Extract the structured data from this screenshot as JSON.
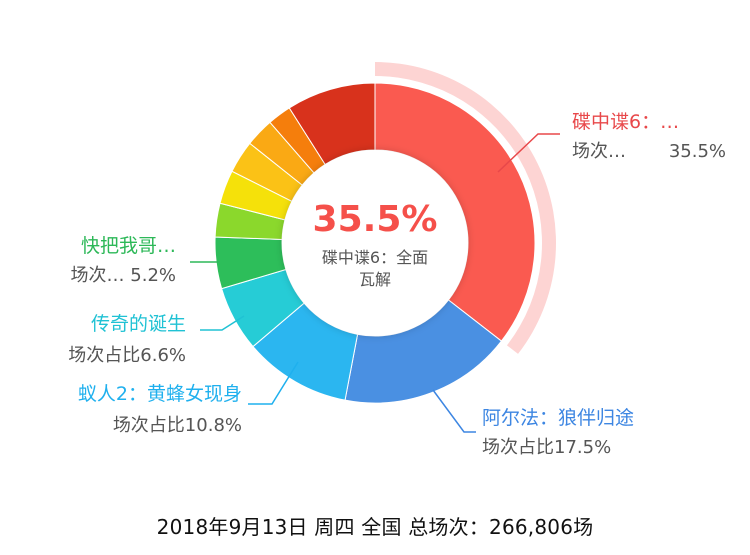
{
  "chart_data": {
    "type": "pie",
    "variant": "donut",
    "center_label": {
      "value": "35.5%",
      "name_line1": "碟中谍6：全面",
      "name_line2": "瓦解"
    },
    "slices": [
      {
        "name": "碟中谍6：全面瓦解",
        "value": 35.5,
        "color": "#FA5A50",
        "highlighted": true
      },
      {
        "name": "阿尔法：狼伴归途",
        "value": 17.5,
        "color": "#4A90E2"
      },
      {
        "name": "蚁人2：黄蜂女现身",
        "value": 10.8,
        "color": "#2BB6F0"
      },
      {
        "name": "传奇的诞生",
        "value": 6.6,
        "color": "#26CCD6"
      },
      {
        "name": "快把我哥带走",
        "value": 5.2,
        "color": "#2DBE5A"
      },
      {
        "name": "",
        "value": 3.4,
        "color": "#8BD82C"
      },
      {
        "name": "",
        "value": 3.4,
        "color": "#F5E10A"
      },
      {
        "name": "",
        "value": 3.3,
        "color": "#FBC216"
      },
      {
        "name": "",
        "value": 2.9,
        "color": "#FAA914"
      },
      {
        "name": "",
        "value": 2.4,
        "color": "#F57E0C"
      },
      {
        "name": "",
        "value": 9.0,
        "color": "#D8321C"
      }
    ],
    "callouts": [
      {
        "title": "碟中谍6：…",
        "sub": "场次…",
        "pct": "35.5%",
        "color": "#E8484A"
      },
      {
        "title": "阿尔法：狼伴归途",
        "sub": "场次占比17.5%",
        "color": "#3D86E2"
      },
      {
        "title": "蚁人2：黄蜂女现身",
        "sub": "场次占比10.8%",
        "color": "#1FB0EE"
      },
      {
        "title": "传奇的诞生",
        "sub": "场次占比6.6%",
        "color": "#20C2D4"
      },
      {
        "title": "快把我哥…",
        "sub": "场次…  5.2%",
        "color": "#2DB858"
      }
    ],
    "footer": "2018年9月13日 周四 全国  总场次：266,806场"
  }
}
